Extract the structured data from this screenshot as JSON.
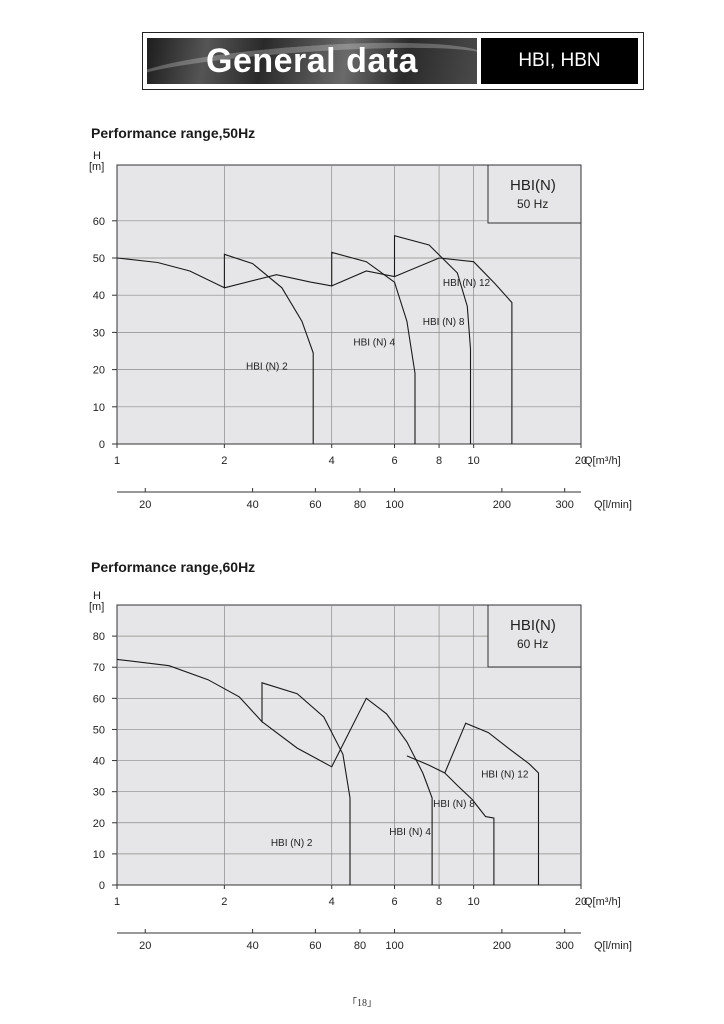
{
  "header": {
    "title": "General data",
    "models": "HBI, HBN"
  },
  "page_number": "「18」",
  "chart_data": [
    {
      "type": "line",
      "title": "Performance range,50Hz",
      "ylabel": "H\n[m]",
      "xlabel": "Q[m³/h]",
      "xlabel2": "Q[l/min]",
      "xscale": "log",
      "xlim": [
        1,
        20
      ],
      "ylim": [
        0,
        75
      ],
      "xticks": [
        1,
        2,
        4,
        6,
        8,
        10,
        20
      ],
      "yticks": [
        0,
        10,
        20,
        30,
        40,
        50,
        60
      ],
      "x2ticks": [
        20,
        40,
        60,
        80,
        100,
        200,
        300
      ],
      "legend_box": {
        "line1": "HBI(N)",
        "line2": "50 Hz"
      },
      "series": [
        {
          "name": "HBI (N) 2",
          "label_at": [
            2.3,
            20
          ],
          "x": [
            1,
            1.3,
            1.6,
            2,
            2,
            2.4,
            2.9,
            3.3,
            3.55,
            3.55
          ],
          "y": [
            50,
            48.8,
            46.5,
            42,
            51,
            48.5,
            42,
            33,
            24.5,
            0
          ]
        },
        {
          "name": "HBI (N) 4",
          "label_at": [
            4.6,
            26.5
          ],
          "x": [
            2,
            2.8,
            3.5,
            4,
            4,
            5,
            6,
            6.5,
            6.85,
            6.85
          ],
          "y": [
            42,
            45.5,
            43.5,
            42.5,
            51.5,
            49,
            43.5,
            33,
            19,
            0
          ]
        },
        {
          "name": "HBI (N) 8",
          "label_at": [
            7.2,
            32
          ],
          "x": [
            4,
            5,
            6,
            6,
            7.5,
            9,
            9.6,
            9.8,
            9.8
          ],
          "y": [
            42.5,
            46.5,
            45,
            56,
            53.5,
            46,
            37,
            25.5,
            0
          ]
        },
        {
          "name": "HBI (N) 12",
          "label_at": [
            8.2,
            42.5
          ],
          "x": [
            6,
            8,
            10,
            11.5,
            12.8,
            12.8
          ],
          "y": [
            45,
            50,
            49,
            43,
            38,
            0
          ]
        }
      ]
    },
    {
      "type": "line",
      "title": "Performance range,60Hz",
      "ylabel": "H\n[m]",
      "xlabel": "Q[m³/h]",
      "xlabel2": "Q[l/min]",
      "xscale": "log",
      "xlim": [
        1,
        20
      ],
      "ylim": [
        0,
        90
      ],
      "xticks": [
        1,
        2,
        4,
        6,
        8,
        10,
        20
      ],
      "yticks": [
        0,
        10,
        20,
        30,
        40,
        50,
        60,
        70,
        80
      ],
      "x2ticks": [
        20,
        40,
        60,
        80,
        100,
        200,
        300
      ],
      "legend_box": {
        "line1": "HBI(N)",
        "line2": "60 Hz"
      },
      "series": [
        {
          "name": "HBI (N) 2",
          "label_at": [
            2.7,
            12.5
          ],
          "x": [
            1,
            1.4,
            1.8,
            2.2,
            2.55,
            2.55,
            3.2,
            3.8,
            4.3,
            4.5,
            4.5
          ],
          "y": [
            72.5,
            70.5,
            66,
            60.5,
            52.5,
            65,
            61.5,
            54,
            42,
            28,
            0
          ]
        },
        {
          "name": "HBI (N) 4",
          "label_at": [
            5.8,
            16
          ],
          "x": [
            2.55,
            3.2,
            4,
            5,
            5.7,
            6.5,
            7.2,
            7.65,
            7.65
          ],
          "y": [
            52.5,
            44,
            38,
            60,
            55,
            46,
            36,
            28,
            0
          ]
        },
        {
          "name": "HBI (N) 8",
          "label_at": [
            7.7,
            25
          ],
          "x": [
            6.5,
            7.5,
            8.3,
            9,
            9.9,
            10.8,
            11.4,
            11.4
          ],
          "y": [
            41.5,
            38.5,
            36,
            32,
            27.5,
            22,
            21.5,
            0
          ]
        },
        {
          "name": "HBI (N) 12",
          "label_at": [
            10.5,
            34.5
          ],
          "x": [
            8.3,
            9.5,
            11,
            12.5,
            14.3,
            15.2,
            15.2
          ],
          "y": [
            36,
            52,
            49,
            44,
            39,
            36,
            0
          ]
        }
      ]
    }
  ]
}
